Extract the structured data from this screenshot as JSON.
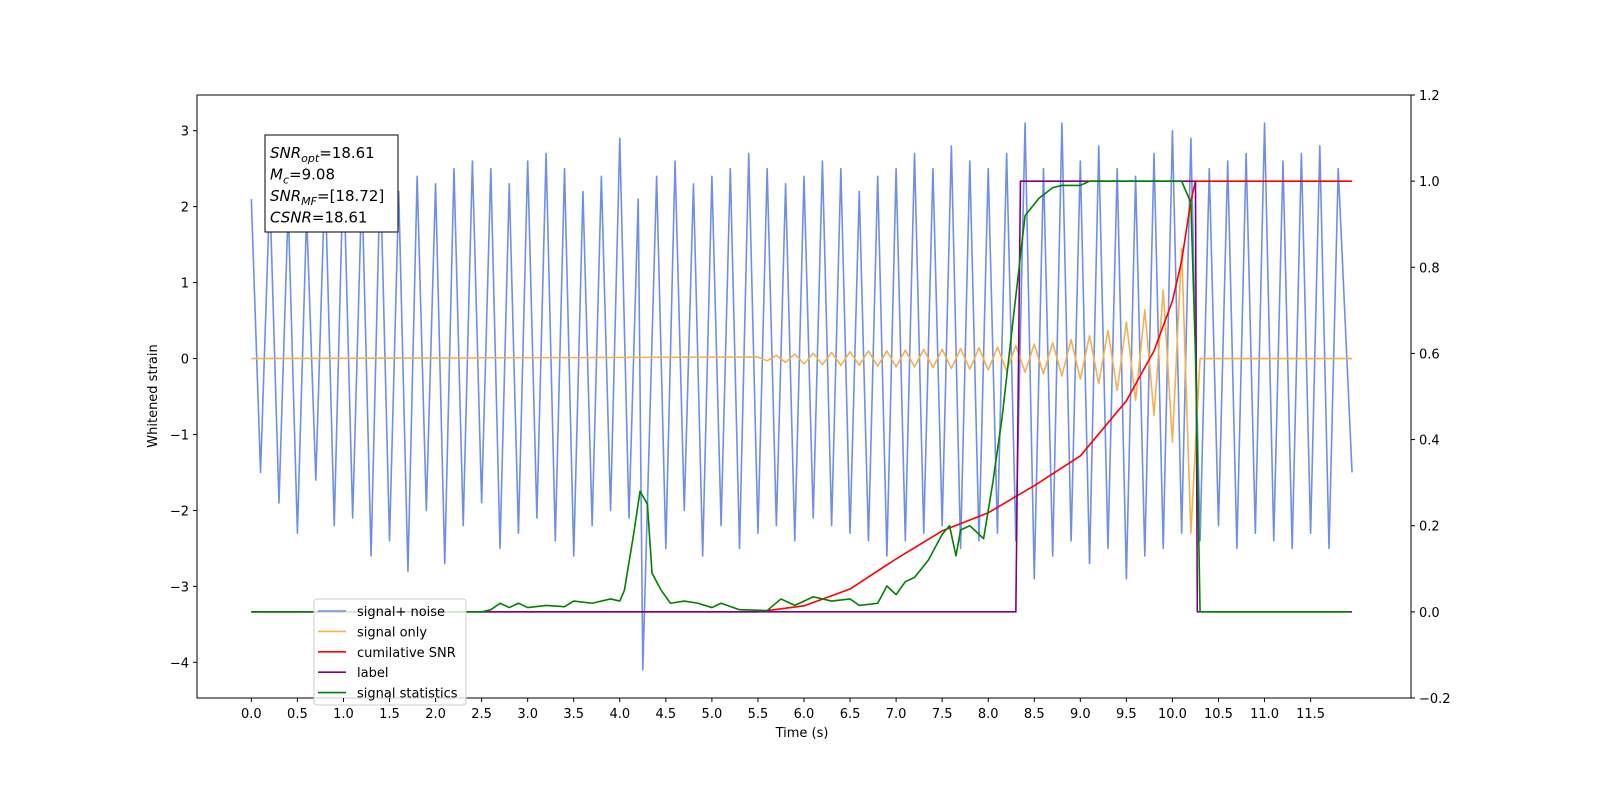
{
  "chart_data": {
    "type": "line",
    "xlabel": "Time (s)",
    "ylabel": "Whitened strain",
    "xlim": [
      -0.59,
      12.59
    ],
    "ylim": [
      -4.47,
      3.47
    ],
    "y2lim": [
      -0.2,
      1.2
    ],
    "xticks": [
      {
        "value": 0,
        "label": "0.0"
      },
      0.5,
      {
        "value": 1,
        "label": "1.0"
      },
      1.5,
      {
        "value": 2,
        "label": "2.0"
      },
      2.5,
      {
        "value": 3,
        "label": "3.0"
      },
      3.5,
      {
        "value": 4,
        "label": "4.0"
      },
      4.5,
      {
        "value": 5,
        "label": "5.0"
      },
      5.5,
      {
        "value": 6,
        "label": "6.0"
      },
      6.5,
      {
        "value": 7,
        "label": "7.0"
      },
      7.5,
      {
        "value": 8,
        "label": "8.0"
      },
      8.5,
      {
        "value": 9,
        "label": "9.0"
      },
      9.5,
      {
        "value": 10,
        "label": "10.0"
      },
      10.5,
      {
        "value": 11,
        "label": "11.0"
      },
      11.5
    ],
    "yticks": [
      {
        "value": -4,
        "label": "−4"
      },
      {
        "value": -3,
        "label": "−3"
      },
      {
        "value": -2,
        "label": "−2"
      },
      {
        "value": -1,
        "label": "−1"
      },
      0,
      1,
      2,
      3
    ],
    "y2ticks": [
      {
        "value": -0.2,
        "label": "−0.2"
      },
      {
        "value": 0,
        "label": "0.0"
      },
      0.2,
      0.4,
      0.6,
      0.8,
      {
        "value": 1,
        "label": "1.0"
      },
      1.2
    ],
    "annotations": [
      {
        "text": "SNR",
        "sub": "opt",
        "rest": "=18.61"
      },
      {
        "text": "M",
        "sub": "c",
        "rest": "=9.08"
      },
      {
        "text": "SNR",
        "sub": "MF",
        "rest": "=[18.72]"
      },
      {
        "text": "CSNR",
        "rest": "=18.61"
      }
    ],
    "series": [
      {
        "name": "signal+ noise",
        "color": "#6f8fe6",
        "axis": "y",
        "x": [
          0,
          0.1,
          0.2,
          0.3,
          0.4,
          0.5,
          0.6,
          0.7,
          0.8,
          0.9,
          1,
          1.1,
          1.2,
          1.3,
          1.4,
          1.5,
          1.6,
          1.7,
          1.8,
          1.9,
          2,
          2.1,
          2.2,
          2.3,
          2.4,
          2.5,
          2.6,
          2.7,
          2.8,
          2.9,
          3,
          3.1,
          3.2,
          3.3,
          3.4,
          3.5,
          3.6,
          3.7,
          3.8,
          3.9,
          4,
          4.1,
          4.2,
          4.25,
          4.4,
          4.5,
          4.6,
          4.7,
          4.8,
          4.9,
          5,
          5.1,
          5.2,
          5.3,
          5.4,
          5.5,
          5.6,
          5.7,
          5.8,
          5.9,
          6,
          6.1,
          6.2,
          6.3,
          6.4,
          6.5,
          6.6,
          6.7,
          6.8,
          6.9,
          7,
          7.1,
          7.2,
          7.3,
          7.4,
          7.5,
          7.6,
          7.7,
          7.8,
          7.9,
          8,
          8.1,
          8.2,
          8.3,
          8.4,
          8.5,
          8.6,
          8.7,
          8.8,
          8.9,
          9,
          9.1,
          9.2,
          9.3,
          9.4,
          9.5,
          9.6,
          9.7,
          9.8,
          9.9,
          10,
          10.1,
          10.2,
          10.3,
          10.4,
          10.5,
          10.6,
          10.7,
          10.8,
          10.9,
          11,
          11.1,
          11.2,
          11.3,
          11.4,
          11.5,
          11.6,
          11.7,
          11.8,
          11.95
        ],
        "values": [
          2.1,
          -1.5,
          2.2,
          -1.9,
          2.0,
          -2.3,
          1.9,
          -1.6,
          2.4,
          -2.2,
          2.6,
          -2.1,
          2.3,
          -2.6,
          2.5,
          -2.4,
          2.2,
          -2.8,
          2.4,
          -2.0,
          2.3,
          -2.7,
          2.5,
          -2.2,
          2.6,
          -1.9,
          2.5,
          -2.5,
          2.3,
          -2.3,
          2.6,
          -2.1,
          2.7,
          -2.4,
          2.5,
          -2.6,
          2.2,
          -2.2,
          2.4,
          -2.0,
          2.9,
          -2.1,
          2.1,
          -4.1,
          2.4,
          -2.5,
          2.6,
          -2.0,
          2.3,
          -2.6,
          2.4,
          -2.2,
          2.5,
          -2.5,
          2.7,
          -2.3,
          2.5,
          -2.2,
          2.3,
          -2.4,
          2.4,
          -2.1,
          2.6,
          -2.2,
          2.5,
          -2.3,
          2.2,
          -2.4,
          2.4,
          -2.6,
          2.5,
          -2.4,
          2.7,
          -2.3,
          2.5,
          -2.2,
          2.8,
          -2.5,
          2.6,
          -2.4,
          2.5,
          -2.3,
          2.7,
          -2.4,
          3.1,
          -2.9,
          2.5,
          -2.6,
          3.1,
          -2.4,
          2.6,
          -2.7,
          2.8,
          -2.5,
          2.5,
          -2.9,
          2.4,
          -2.6,
          2.7,
          -2.5,
          3.0,
          -2.3,
          2.9,
          -2.4,
          2.5,
          -2.2,
          2.6,
          -2.5,
          2.7,
          -2.3,
          3.1,
          -2.4,
          2.6,
          -2.5,
          2.7,
          -2.3,
          2.8,
          -2.5,
          2.5,
          -1.5
        ]
      },
      {
        "name": "signal only",
        "color": "#f5b04f",
        "axis": "y",
        "x": [
          0,
          5.5,
          5.6,
          5.7,
          5.8,
          5.9,
          6,
          6.1,
          6.2,
          6.3,
          6.4,
          6.5,
          6.6,
          6.7,
          6.8,
          6.9,
          7,
          7.1,
          7.2,
          7.3,
          7.4,
          7.5,
          7.6,
          7.7,
          7.8,
          7.9,
          8,
          8.1,
          8.2,
          8.3,
          8.4,
          8.5,
          8.6,
          8.7,
          8.8,
          8.9,
          9,
          9.1,
          9.2,
          9.3,
          9.4,
          9.5,
          9.6,
          9.7,
          9.8,
          9.9,
          10,
          10.1,
          10.2,
          10.3,
          11.95
        ],
        "values": [
          0,
          0.02,
          -0.03,
          0.04,
          -0.05,
          0.06,
          -0.07,
          0.07,
          -0.08,
          0.08,
          -0.09,
          0.09,
          -0.09,
          0.1,
          -0.1,
          0.1,
          -0.11,
          0.11,
          -0.11,
          0.12,
          -0.12,
          0.12,
          -0.13,
          0.13,
          -0.14,
          0.14,
          -0.15,
          0.15,
          -0.16,
          0.17,
          -0.18,
          0.19,
          -0.2,
          0.21,
          -0.23,
          0.25,
          -0.27,
          0.3,
          -0.33,
          0.37,
          -0.42,
          0.48,
          -0.55,
          0.64,
          -0.75,
          0.9,
          -1.1,
          1.45,
          -2.3,
          0,
          0
        ]
      },
      {
        "name": "cumilative SNR",
        "color": "#ff0000",
        "axis": "y2",
        "x": [
          0,
          5.5,
          6,
          6.5,
          7,
          7.5,
          8,
          8.5,
          9,
          9.5,
          9.8,
          10,
          10.1,
          10.2,
          10.25,
          11.95
        ],
        "values": [
          0,
          0,
          0.014,
          0.053,
          0.123,
          0.188,
          0.23,
          0.293,
          0.362,
          0.49,
          0.606,
          0.722,
          0.815,
          0.954,
          1,
          1
        ]
      },
      {
        "name": "label",
        "color": "#800080",
        "axis": "y2",
        "x": [
          0,
          8.3,
          8.35,
          10.25,
          10.27,
          11.95
        ],
        "values": [
          0,
          0,
          1,
          1,
          0,
          0
        ]
      },
      {
        "name": "signal statistics",
        "color": "#008000",
        "axis": "y2",
        "x": [
          0,
          2.5,
          2.6,
          2.7,
          2.8,
          2.9,
          3,
          3.2,
          3.4,
          3.5,
          3.7,
          3.9,
          4,
          4.05,
          4.15,
          4.22,
          4.3,
          4.35,
          4.45,
          4.55,
          4.7,
          4.85,
          5,
          5.1,
          5.3,
          5.6,
          5.75,
          5.9,
          6,
          6.1,
          6.3,
          6.5,
          6.6,
          6.8,
          6.9,
          7,
          7.1,
          7.2,
          7.35,
          7.5,
          7.58,
          7.65,
          7.7,
          7.8,
          7.95,
          8.05,
          8.15,
          8.25,
          8.4,
          8.55,
          8.7,
          8.8,
          9,
          9.1,
          10.1,
          10.2,
          10.25,
          10.3,
          11.93
        ],
        "values": [
          0,
          0,
          0.005,
          0.02,
          0.01,
          0.02,
          0.01,
          0.015,
          0.012,
          0.025,
          0.02,
          0.03,
          0.025,
          0.05,
          0.18,
          0.28,
          0.25,
          0.09,
          0.05,
          0.02,
          0.025,
          0.02,
          0.01,
          0.02,
          0.005,
          0.003,
          0.03,
          0.015,
          0.025,
          0.035,
          0.025,
          0.03,
          0.015,
          0.02,
          0.06,
          0.04,
          0.07,
          0.08,
          0.12,
          0.18,
          0.2,
          0.13,
          0.19,
          0.2,
          0.17,
          0.3,
          0.45,
          0.64,
          0.92,
          0.96,
          0.985,
          0.99,
          0.99,
          1,
          1,
          0.95,
          0.6,
          0,
          0
        ]
      }
    ]
  }
}
